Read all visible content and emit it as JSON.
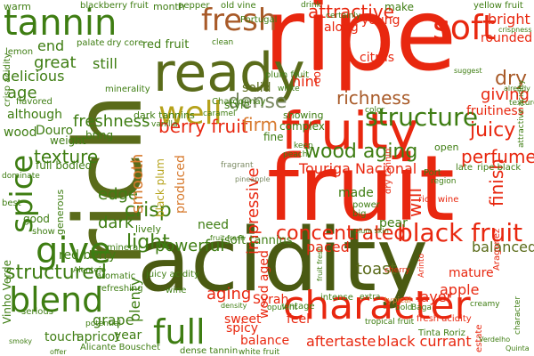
{
  "palette": {
    "red": "#e8270f",
    "dark_olive": "#4a5a12",
    "olive": "#5a6b1a",
    "green": "#3e7d12",
    "tan": "#a85a28",
    "orange": "#d77a2e",
    "yellow_green": "#b6a21a",
    "gray": "#7b8a63"
  },
  "words": [
    {
      "t": "ripe",
      "c": "red",
      "r": 0
    },
    {
      "t": "fruit",
      "c": "red",
      "r": 0
    },
    {
      "t": "acidity",
      "c": "dark_olive",
      "r": 0
    },
    {
      "t": "rich",
      "c": "olive",
      "r": 1
    },
    {
      "t": "fruity",
      "c": "red",
      "r": 0
    },
    {
      "t": "ready",
      "c": "olive",
      "r": 0
    },
    {
      "t": "character",
      "c": "red",
      "r": 0
    },
    {
      "t": "soft",
      "c": "red",
      "r": 0
    },
    {
      "t": "tannin",
      "c": "green",
      "r": 0
    },
    {
      "t": "fresh",
      "c": "tan",
      "r": 0
    },
    {
      "t": "spice",
      "c": "green",
      "r": 1
    },
    {
      "t": "give",
      "c": "green",
      "r": 0
    },
    {
      "t": "blend",
      "c": "green",
      "r": 0
    },
    {
      "t": "full",
      "c": "green",
      "r": 0
    },
    {
      "t": "well",
      "c": "yellow_green",
      "r": 0
    },
    {
      "t": "structure",
      "c": "green",
      "r": 0
    },
    {
      "t": "black fruit",
      "c": "red",
      "r": 0
    },
    {
      "t": "wood aging",
      "c": "green",
      "r": 0
    },
    {
      "t": "concentrated",
      "c": "red",
      "r": 0
    },
    {
      "t": "structured",
      "c": "green",
      "r": 0
    },
    {
      "t": "berry fruit",
      "c": "red",
      "r": 0
    },
    {
      "t": "attractive",
      "c": "red",
      "r": 0
    },
    {
      "t": "juicy",
      "c": "red",
      "r": 0
    },
    {
      "t": "dense",
      "c": "gray",
      "r": 0
    },
    {
      "t": "dry",
      "c": "tan",
      "r": 0
    },
    {
      "t": "light",
      "c": "green",
      "r": 0
    },
    {
      "t": "crisp",
      "c": "green",
      "r": 0
    },
    {
      "t": "richness",
      "c": "tan",
      "r": 0
    },
    {
      "t": "perfumed",
      "c": "red",
      "r": 0
    },
    {
      "t": "Touriga Nacional",
      "c": "red",
      "r": 0
    },
    {
      "t": "firm",
      "c": "orange",
      "r": 0
    },
    {
      "t": "texture",
      "c": "green",
      "r": 0
    },
    {
      "t": "aging",
      "c": "red",
      "r": 0
    },
    {
      "t": "finish",
      "c": "red",
      "r": 1
    },
    {
      "t": "giving",
      "c": "red",
      "r": 0
    },
    {
      "t": "bright",
      "c": "red",
      "r": 0
    },
    {
      "t": "paced",
      "c": "red",
      "r": 0
    },
    {
      "t": "toast",
      "c": "olive",
      "r": 0
    },
    {
      "t": "balanced",
      "c": "olive",
      "r": 0
    },
    {
      "t": "fruitiness",
      "c": "red",
      "r": 0
    },
    {
      "t": "powerful",
      "c": "green",
      "r": 0
    },
    {
      "t": "age",
      "c": "green",
      "r": 0
    },
    {
      "t": "great",
      "c": "green",
      "r": 0
    },
    {
      "t": "end",
      "c": "green",
      "r": 0
    },
    {
      "t": "edge",
      "c": "green",
      "r": 0
    },
    {
      "t": "freshness",
      "c": "green",
      "r": 0
    },
    {
      "t": "smooth",
      "c": "orange",
      "r": 1
    },
    {
      "t": "impressive",
      "c": "red",
      "r": 1
    },
    {
      "t": "wood aged",
      "c": "red",
      "r": 1
    },
    {
      "t": "dark",
      "c": "green",
      "r": 0
    },
    {
      "t": "red berry",
      "c": "green",
      "r": 0
    },
    {
      "t": "will",
      "c": "red",
      "r": 1
    },
    {
      "t": "hint",
      "c": "red",
      "r": 0
    },
    {
      "t": "Douro",
      "c": "green",
      "r": 0
    },
    {
      "t": "delicious",
      "c": "green",
      "r": 0
    },
    {
      "t": "wood",
      "c": "green",
      "r": 0
    },
    {
      "t": "solid",
      "c": "olive",
      "r": 0
    },
    {
      "t": "young",
      "c": "red",
      "r": 0
    },
    {
      "t": "citrus",
      "c": "red",
      "r": 0
    },
    {
      "t": "layer",
      "c": "red",
      "r": 0
    },
    {
      "t": "apple",
      "c": "red",
      "r": 0
    },
    {
      "t": "sweet",
      "c": "red",
      "r": 0
    },
    {
      "t": "plenty",
      "c": "green",
      "r": 1
    },
    {
      "t": "year",
      "c": "green",
      "r": 0
    },
    {
      "t": "grape",
      "c": "green",
      "r": 0
    },
    {
      "t": "aftertaste",
      "c": "red",
      "r": 0
    },
    {
      "t": "black currant",
      "c": "red",
      "r": 0
    },
    {
      "t": "balance",
      "c": "red",
      "r": 0
    },
    {
      "t": "Syrah",
      "c": "red",
      "r": 0
    },
    {
      "t": "feel",
      "c": "red",
      "r": 0
    },
    {
      "t": "need",
      "c": "green",
      "r": 0
    },
    {
      "t": "soft tannins",
      "c": "green",
      "r": 0
    },
    {
      "t": "Vinho Verde",
      "c": "green",
      "r": 1
    },
    {
      "t": "made",
      "c": "green",
      "r": 0
    },
    {
      "t": "pear",
      "c": "green",
      "r": 0
    },
    {
      "t": "mature",
      "c": "red",
      "r": 0
    },
    {
      "t": "rounded",
      "c": "red",
      "r": 0
    },
    {
      "t": "complex",
      "c": "green",
      "r": 0
    },
    {
      "t": "fine",
      "c": "green",
      "r": 0
    },
    {
      "t": "still",
      "c": "green",
      "r": 0
    },
    {
      "t": "along",
      "c": "red",
      "r": 0
    },
    {
      "t": "make",
      "c": "green",
      "r": 0
    },
    {
      "t": "come",
      "c": "red",
      "r": 1
    },
    {
      "t": "full bodied",
      "c": "green",
      "r": 0
    },
    {
      "t": "bring",
      "c": "green",
      "r": 0
    },
    {
      "t": "although",
      "c": "green",
      "r": 0
    },
    {
      "t": "weight",
      "c": "green",
      "r": 0
    },
    {
      "t": "style",
      "c": "green",
      "r": 0
    },
    {
      "t": "produced",
      "c": "orange",
      "r": 1
    },
    {
      "t": "black plum",
      "c": "yellow_green",
      "r": 1
    },
    {
      "t": "fruit fresh",
      "c": "green",
      "r": 0
    },
    {
      "t": "showing",
      "c": "green",
      "r": 0
    },
    {
      "t": "dark tannins",
      "c": "green",
      "r": 0
    },
    {
      "t": "juicy acidity",
      "c": "green",
      "r": 0
    },
    {
      "t": "mineral",
      "c": "green",
      "r": 0
    },
    {
      "t": "month",
      "c": "green",
      "r": 0
    },
    {
      "t": "warm",
      "c": "green",
      "r": 0
    },
    {
      "t": "yellow fruit",
      "c": "green",
      "r": 0
    },
    {
      "t": "blackberry fruit",
      "c": "green",
      "r": 0
    },
    {
      "t": "old vine",
      "c": "green",
      "r": 0
    },
    {
      "t": "flavored",
      "c": "green",
      "r": 0
    },
    {
      "t": "lemon",
      "c": "green",
      "r": 0
    },
    {
      "t": "red fruit",
      "c": "green",
      "r": 0
    },
    {
      "t": "crisp acidity",
      "c": "green",
      "r": 1
    },
    {
      "t": "Chardonnay",
      "c": "green",
      "r": 0
    },
    {
      "t": "minerality",
      "c": "green",
      "r": 0
    },
    {
      "t": "plum fruit",
      "c": "green",
      "r": 0
    },
    {
      "t": "Portugal",
      "c": "green",
      "r": 0
    },
    {
      "t": "open",
      "c": "green",
      "r": 0
    },
    {
      "t": "dry tannin",
      "c": "red",
      "r": 1
    },
    {
      "t": "rich wine",
      "c": "red",
      "r": 0
    },
    {
      "t": "white fruit",
      "c": "green",
      "r": 0
    },
    {
      "t": "tropical fruit",
      "c": "green",
      "r": 0
    },
    {
      "t": "fresh acidity",
      "c": "red",
      "r": 0
    },
    {
      "t": "Tinta Roriz",
      "c": "green",
      "r": 0
    },
    {
      "t": "Alicante Bouschet",
      "c": "green",
      "r": 0
    },
    {
      "t": "dense tannin",
      "c": "green",
      "r": 0
    },
    {
      "t": "touch",
      "c": "green",
      "r": 0
    },
    {
      "t": "apricot",
      "c": "green",
      "r": 0
    },
    {
      "t": "spicy",
      "c": "red",
      "r": 0
    },
    {
      "t": "potential",
      "c": "green",
      "r": 0
    },
    {
      "t": "refreshing",
      "c": "green",
      "r": 0
    },
    {
      "t": "serious",
      "c": "green",
      "r": 0
    },
    {
      "t": "aromatic",
      "c": "green",
      "r": 0
    },
    {
      "t": "vintage",
      "c": "green",
      "r": 0
    },
    {
      "t": "intense",
      "c": "green",
      "r": 0
    },
    {
      "t": "Port",
      "c": "green",
      "r": 0
    },
    {
      "t": "Aragonez",
      "c": "red",
      "r": 1
    },
    {
      "t": "estate",
      "c": "red",
      "r": 1
    },
    {
      "t": "late",
      "c": "green",
      "r": 0
    },
    {
      "t": "power",
      "c": "green",
      "r": 0
    },
    {
      "t": "big",
      "c": "green",
      "r": 0
    },
    {
      "t": "peach",
      "c": "green",
      "r": 0
    },
    {
      "t": "fragrant",
      "c": "gray",
      "r": 0
    },
    {
      "t": "drink",
      "c": "green",
      "r": 0
    },
    {
      "t": "certainly",
      "c": "green",
      "r": 0
    },
    {
      "t": "pepper",
      "c": "green",
      "r": 0
    },
    {
      "t": "palate",
      "c": "green",
      "r": 0
    },
    {
      "t": "dry core",
      "c": "green",
      "r": 0
    },
    {
      "t": "clean",
      "c": "green",
      "r": 0
    },
    {
      "t": "white",
      "c": "green",
      "r": 0
    },
    {
      "t": "vanilla",
      "c": "green",
      "r": 0
    },
    {
      "t": "caramel",
      "c": "green",
      "r": 0
    },
    {
      "t": "region",
      "c": "green",
      "r": 0
    },
    {
      "t": "attractive acidity",
      "c": "green",
      "r": 1
    },
    {
      "t": "ripe black",
      "c": "green",
      "r": 0
    },
    {
      "t": "keep",
      "c": "green",
      "r": 0
    },
    {
      "t": "textured",
      "c": "green",
      "r": 0
    },
    {
      "t": "crispness",
      "c": "green",
      "r": 0
    },
    {
      "t": "suggest",
      "c": "green",
      "r": 0
    },
    {
      "t": "already",
      "c": "green",
      "r": 0
    },
    {
      "t": "character",
      "c": "green",
      "r": 1
    },
    {
      "t": "extra",
      "c": "green",
      "r": 0
    },
    {
      "t": "creamy",
      "c": "green",
      "r": 0
    },
    {
      "t": "Baga",
      "c": "green",
      "r": 0
    },
    {
      "t": "pineapple",
      "c": "gray",
      "r": 0
    },
    {
      "t": "plum skin",
      "c": "green",
      "r": 0
    },
    {
      "t": "cherry",
      "c": "red",
      "r": 0
    },
    {
      "t": "typical",
      "c": "orange",
      "r": 0
    },
    {
      "t": "bold",
      "c": "green",
      "r": 0
    },
    {
      "t": "opulent",
      "c": "green",
      "r": 0
    },
    {
      "t": "offer",
      "c": "green",
      "r": 0
    },
    {
      "t": "smoky",
      "c": "green",
      "r": 0
    },
    {
      "t": "best",
      "c": "green",
      "r": 0
    },
    {
      "t": "dominate",
      "c": "green",
      "r": 0
    },
    {
      "t": "show",
      "c": "green",
      "r": 0
    },
    {
      "t": "lively",
      "c": "green",
      "r": 0
    },
    {
      "t": "generous",
      "c": "green",
      "r": 1
    },
    {
      "t": "good",
      "c": "green",
      "r": 0
    },
    {
      "t": "density",
      "c": "green",
      "r": 0
    },
    {
      "t": "wine",
      "c": "green",
      "r": 0
    },
    {
      "t": "color",
      "c": "green",
      "r": 0
    },
    {
      "t": "Arinto",
      "c": "red",
      "r": 1
    },
    {
      "t": "Alentejo",
      "c": "green",
      "r": 0
    },
    {
      "t": "fruit fresh",
      "c": "green",
      "r": 1
    },
    {
      "t": "Verdelho",
      "c": "green",
      "r": 0
    },
    {
      "t": "Quinta",
      "c": "green",
      "r": 0
    }
  ]
}
